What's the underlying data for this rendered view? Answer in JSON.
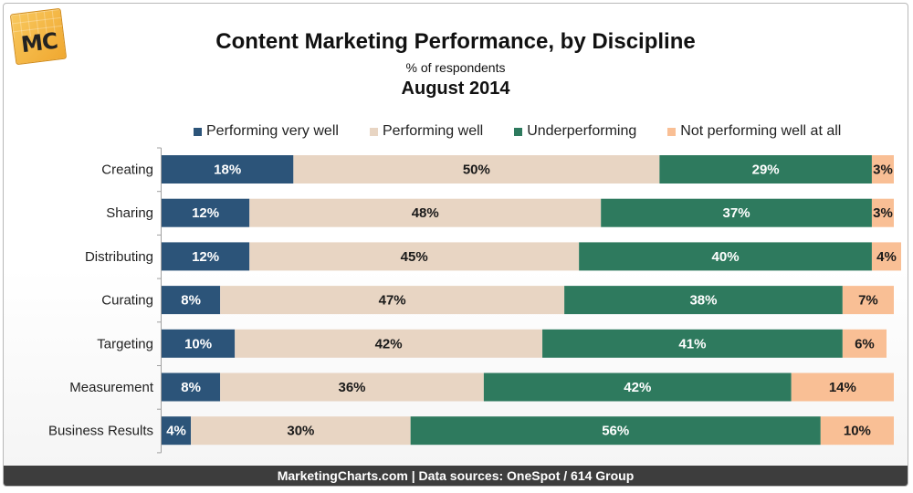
{
  "logo": {
    "text": "MC"
  },
  "colors": {
    "performing_very_well": "#2c5479",
    "performing_well": "#e8d5c3",
    "underperforming": "#2e7a5e",
    "not_performing_well": "#f9bf95",
    "axis": "#a0a0a0",
    "footer_bg": "#3d3d3d"
  },
  "footer": {
    "text": "MarketingCharts.com | Data sources: OneSpot / 614 Group"
  },
  "chart_data": {
    "type": "bar",
    "orientation": "horizontal",
    "stacked": true,
    "title": "Content Marketing Performance, by Discipline",
    "subtitle": "% of respondents",
    "date": "August 2014",
    "xlabel": "",
    "ylabel": "",
    "xlim": [
      0,
      100
    ],
    "grid": false,
    "legend_position": "top",
    "categories": [
      "Creating",
      "Sharing",
      "Distributing",
      "Curating",
      "Targeting",
      "Measurement",
      "Business Results"
    ],
    "series": [
      {
        "name": "Performing very well",
        "color": "#2c5479",
        "label_color": "#ffffff",
        "values": [
          18,
          12,
          12,
          8,
          10,
          8,
          4
        ]
      },
      {
        "name": "Performing well",
        "color": "#e8d5c3",
        "label_color": "#1a1a1a",
        "values": [
          50,
          48,
          45,
          47,
          42,
          36,
          30
        ]
      },
      {
        "name": "Underperforming",
        "color": "#2e7a5e",
        "label_color": "#ffffff",
        "values": [
          29,
          37,
          40,
          38,
          41,
          42,
          56
        ]
      },
      {
        "name": "Not performing well at all",
        "color": "#f9bf95",
        "label_color": "#1a1a1a",
        "values": [
          3,
          3,
          4,
          7,
          6,
          14,
          10
        ]
      }
    ]
  }
}
